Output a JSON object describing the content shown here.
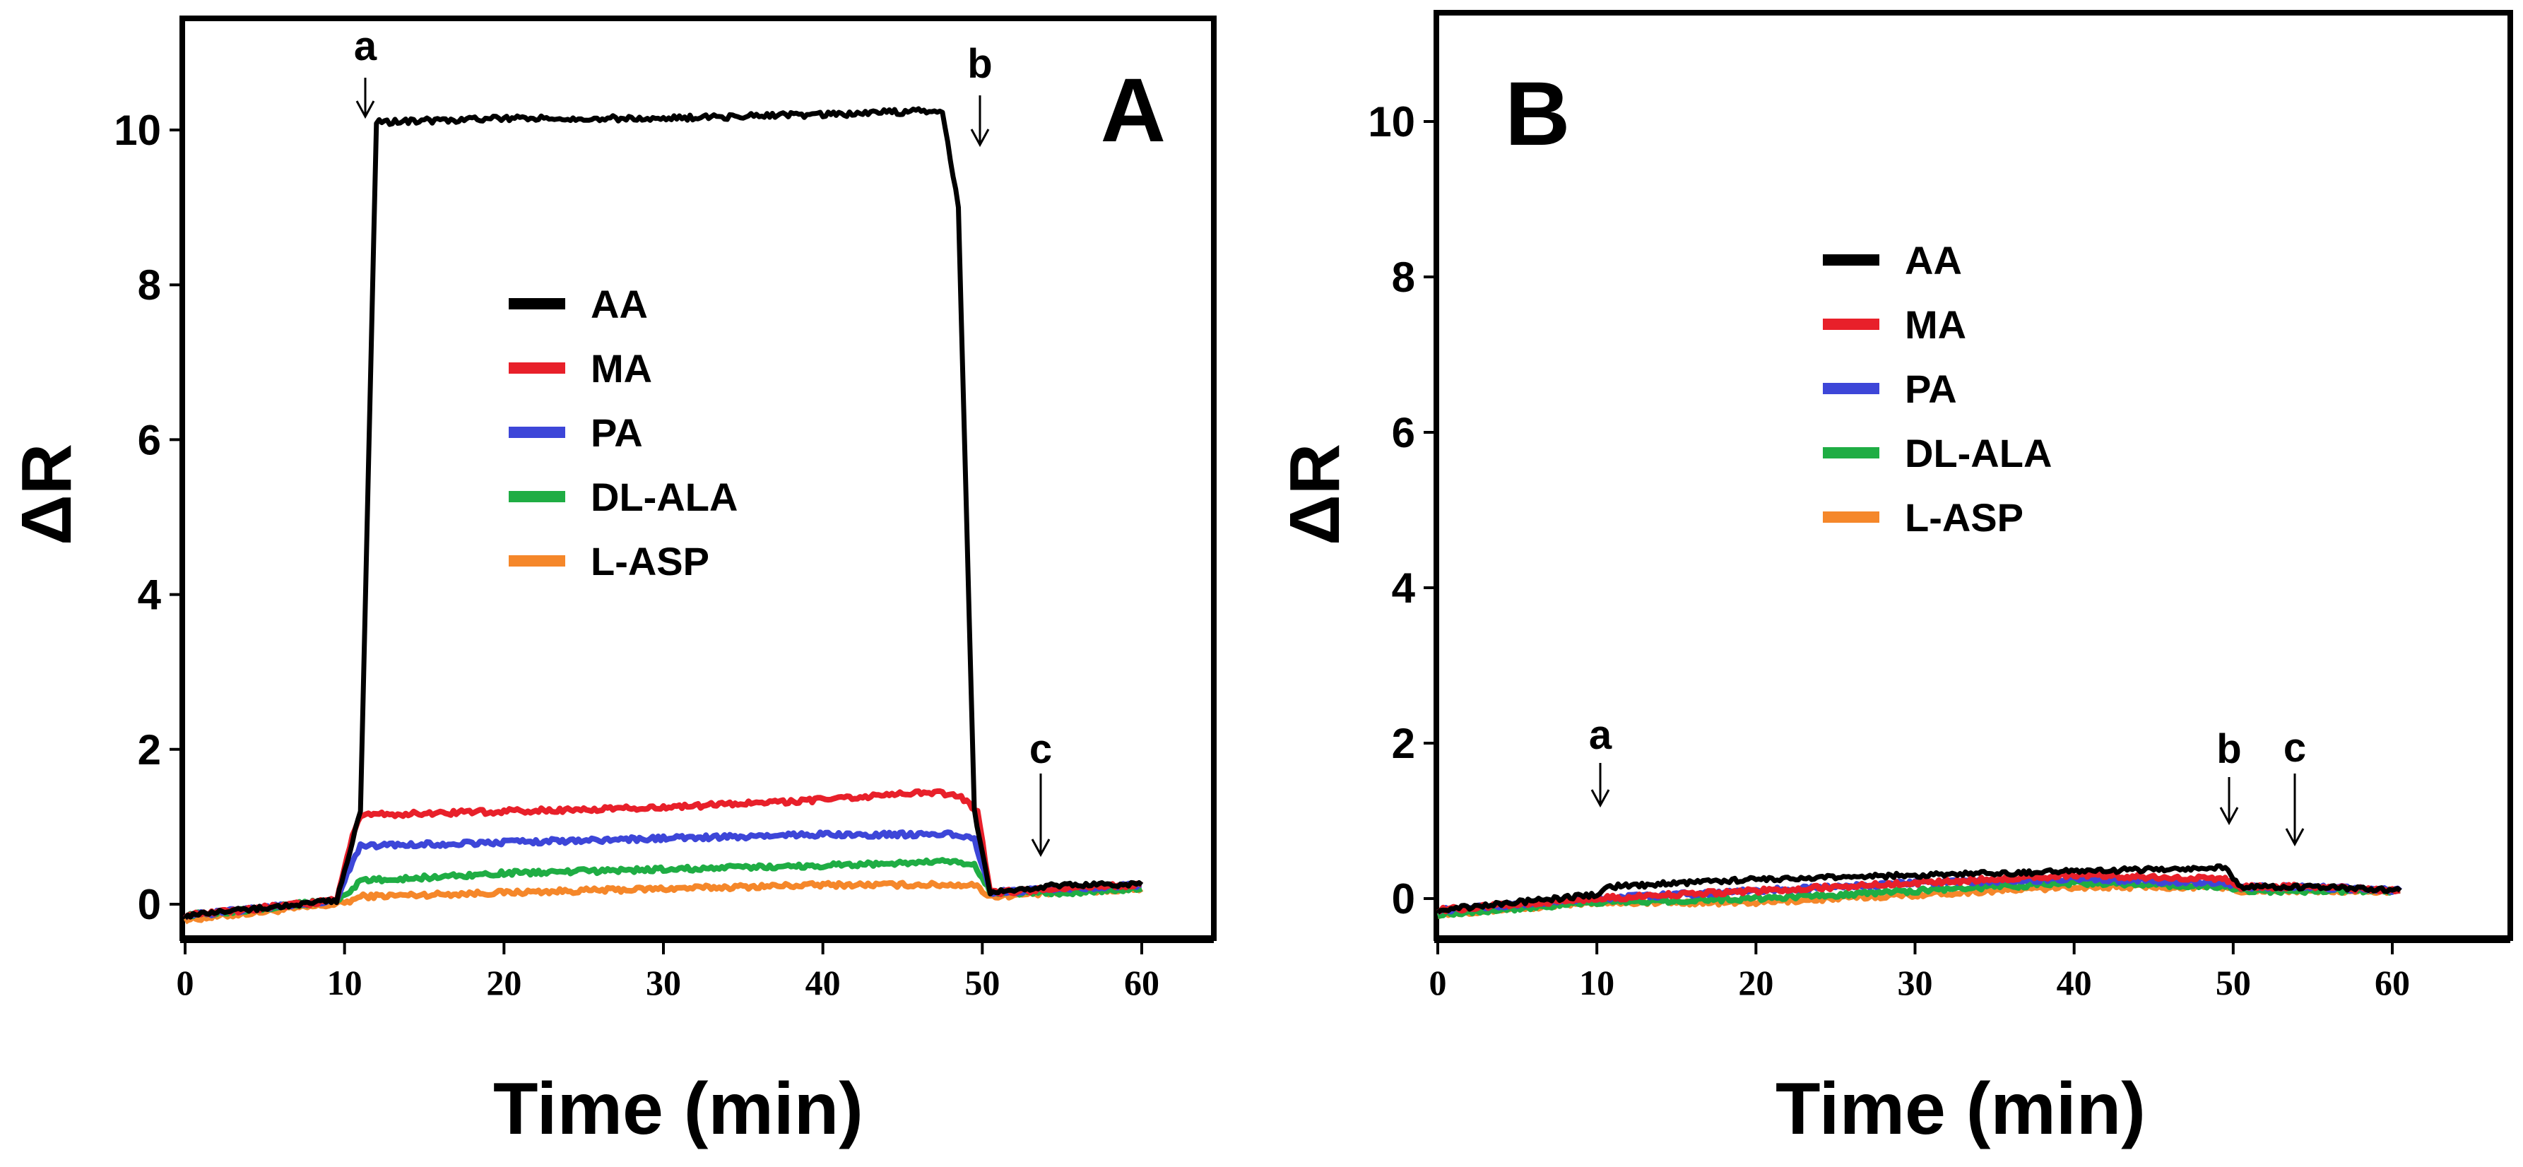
{
  "chart_data": [
    {
      "type": "line",
      "panel_label": "A",
      "xlabel": "Time (min)",
      "ylabel": "ΔR",
      "xlim": [
        0,
        65
      ],
      "ylim": [
        -0.4,
        11
      ],
      "xticks": [
        0,
        10,
        20,
        30,
        40,
        50,
        60
      ],
      "yticks": [
        0,
        2,
        4,
        6,
        8,
        10
      ],
      "legend": [
        "AA",
        "MA",
        "PA",
        "DL-ALA",
        "L-ASP"
      ],
      "legend_position": "center",
      "annotations": [
        {
          "text": "a",
          "x": 11.5
        },
        {
          "text": "b",
          "x": 50
        },
        {
          "text": "c",
          "x": 54
        }
      ],
      "series": [
        {
          "name": "AA",
          "color": "#000000",
          "x": [
            0,
            9.5,
            11,
            12,
            20,
            30,
            40,
            47.5,
            48.5,
            49.5,
            50.5,
            55,
            60
          ],
          "y": [
            -0.15,
            0.05,
            1.2,
            10.1,
            10.15,
            10.15,
            10.2,
            10.25,
            9,
            1.2,
            0.15,
            0.25,
            0.25
          ]
        },
        {
          "name": "MA",
          "color": "#e8202a",
          "x": [
            0,
            9.5,
            10.5,
            11,
            20,
            30,
            40,
            47,
            48.5,
            49.7,
            50.5,
            55,
            60
          ],
          "y": [
            -0.15,
            0.05,
            0.9,
            1.15,
            1.2,
            1.25,
            1.35,
            1.45,
            1.4,
            1.2,
            0.15,
            0.2,
            0.25
          ]
        },
        {
          "name": "PA",
          "color": "#3d46d8",
          "x": [
            0,
            9.5,
            10.5,
            11,
            20,
            30,
            40,
            48,
            49.5,
            50.5,
            55,
            60
          ],
          "y": [
            -0.15,
            0.05,
            0.55,
            0.75,
            0.8,
            0.85,
            0.9,
            0.9,
            0.85,
            0.15,
            0.2,
            0.25
          ]
        },
        {
          "name": "DL-ALA",
          "color": "#1fad44",
          "x": [
            0,
            9.5,
            10.5,
            11,
            20,
            30,
            40,
            48,
            49.5,
            50.5,
            55,
            60
          ],
          "y": [
            -0.15,
            0.05,
            0.2,
            0.3,
            0.4,
            0.45,
            0.5,
            0.55,
            0.5,
            0.15,
            0.15,
            0.2
          ]
        },
        {
          "name": "L-ASP",
          "color": "#f5872a",
          "x": [
            0,
            9.5,
            10.5,
            11,
            20,
            30,
            40,
            48,
            49.5,
            50.5,
            55,
            60
          ],
          "y": [
            -0.2,
            0.0,
            0.05,
            0.1,
            0.15,
            0.2,
            0.25,
            0.25,
            0.25,
            0.1,
            0.15,
            0.2
          ]
        }
      ]
    },
    {
      "type": "line",
      "panel_label": "B",
      "xlabel": "Time (min)",
      "ylabel": "ΔR",
      "xlim": [
        0,
        67
      ],
      "ylim": [
        -0.4,
        11
      ],
      "xticks": [
        0,
        10,
        20,
        30,
        40,
        50,
        60
      ],
      "yticks": [
        0,
        2,
        4,
        6,
        8,
        10
      ],
      "legend": [
        "AA",
        "MA",
        "PA",
        "DL-ALA",
        "L-ASP"
      ],
      "legend_position": "top-center",
      "annotations": [
        {
          "text": "a",
          "x": 10.2
        },
        {
          "text": "b",
          "x": 49.8
        },
        {
          "text": "c",
          "x": 54
        }
      ],
      "series": [
        {
          "name": "AA",
          "color": "#000000",
          "x": [
            0,
            10,
            10.5,
            20,
            30,
            40,
            49.5,
            50.5,
            55,
            60.5
          ],
          "y": [
            -0.15,
            0.05,
            0.15,
            0.25,
            0.3,
            0.35,
            0.4,
            0.15,
            0.15,
            0.1
          ]
        },
        {
          "name": "MA",
          "color": "#e8202a",
          "x": [
            0,
            10,
            20,
            30,
            40,
            49.5,
            50.5,
            55,
            60.5
          ],
          "y": [
            -0.15,
            0.0,
            0.1,
            0.2,
            0.3,
            0.25,
            0.15,
            0.15,
            0.1
          ]
        },
        {
          "name": "PA",
          "color": "#3d46d8",
          "x": [
            0,
            10,
            20,
            30,
            40,
            49.5,
            50.5,
            55,
            60.5
          ],
          "y": [
            -0.15,
            0.0,
            0.1,
            0.2,
            0.25,
            0.2,
            0.15,
            0.15,
            0.1
          ]
        },
        {
          "name": "DL-ALA",
          "color": "#1fad44",
          "x": [
            0,
            10,
            20,
            30,
            40,
            49.5,
            50.5,
            55,
            60.5
          ],
          "y": [
            -0.2,
            -0.05,
            0.0,
            0.1,
            0.2,
            0.15,
            0.1,
            0.1,
            0.1
          ]
        },
        {
          "name": "L-ASP",
          "color": "#f5872a",
          "x": [
            0,
            10,
            20,
            30,
            40,
            49.5,
            50.5,
            55,
            60.5
          ],
          "y": [
            -0.2,
            -0.05,
            -0.05,
            0.05,
            0.15,
            0.15,
            0.1,
            0.1,
            0.1
          ]
        }
      ]
    }
  ]
}
